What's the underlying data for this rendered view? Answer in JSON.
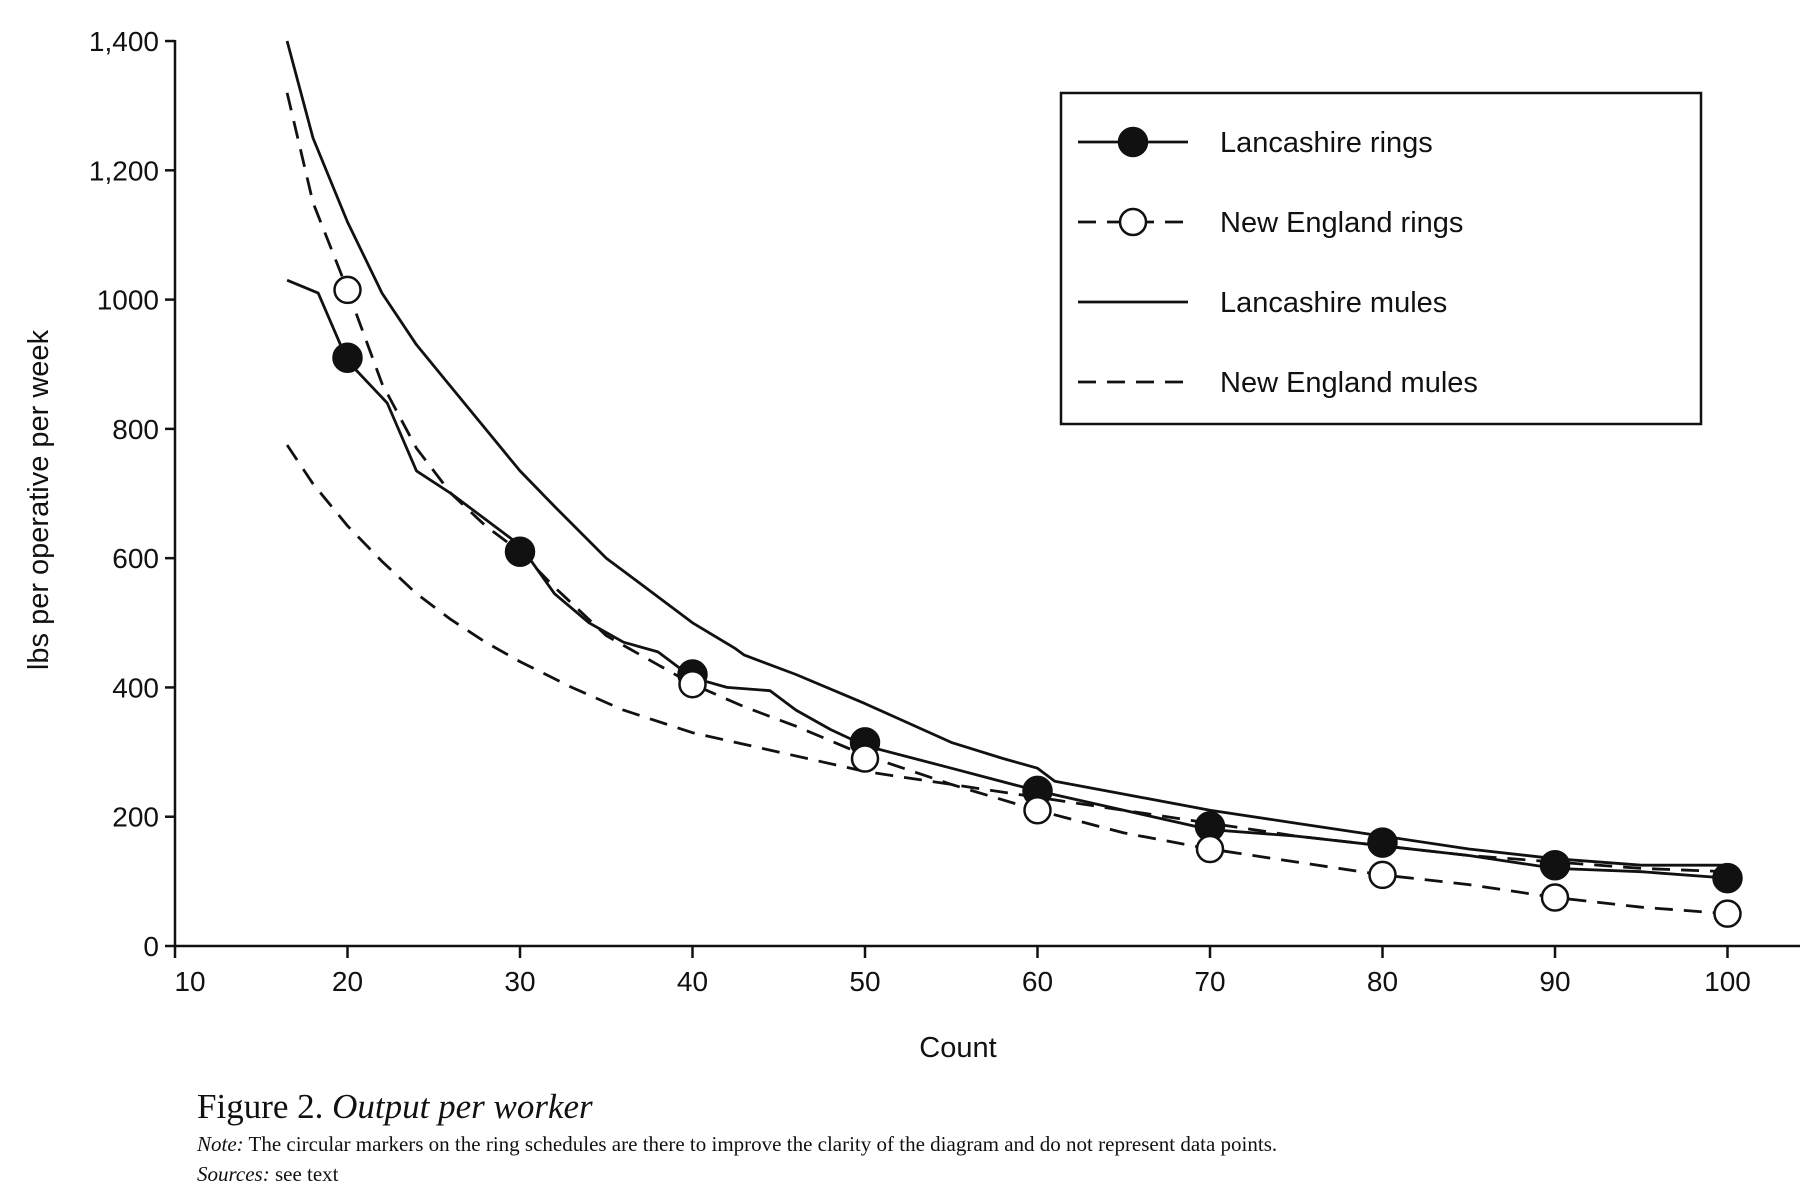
{
  "chart_data": {
    "type": "line",
    "xlabel": "Count",
    "ylabel": "lbs per operative per week",
    "xlim": [
      10,
      105
    ],
    "ylim": [
      0,
      1400
    ],
    "x_ticks": [
      10,
      20,
      30,
      40,
      50,
      60,
      70,
      80,
      90,
      100
    ],
    "y_ticks": [
      {
        "value": 0,
        "label": "0"
      },
      {
        "value": 200,
        "label": "200"
      },
      {
        "value": 400,
        "label": "400"
      },
      {
        "value": 600,
        "label": "600"
      },
      {
        "value": 800,
        "label": "800"
      },
      {
        "value": 1000,
        "label": "1000"
      },
      {
        "value": 1200,
        "label": "1,200"
      },
      {
        "value": 1400,
        "label": "1,400"
      }
    ],
    "grid": false,
    "legend_position": "top-right",
    "series": [
      {
        "name": "Lancashire rings",
        "line": "solid",
        "marker": "filled-circle",
        "x": [
          16.5,
          18.3,
          20,
          22.3,
          24,
          26,
          28,
          30,
          32,
          34,
          36,
          38,
          40,
          42,
          44.5,
          46,
          48,
          50,
          55,
          60,
          65,
          70,
          75,
          80,
          85,
          90,
          95,
          100
        ],
        "y": [
          1030,
          1010,
          905,
          840,
          735,
          700,
          660,
          620,
          545,
          500,
          470,
          455,
          415,
          400,
          395,
          365,
          335,
          310,
          275,
          240,
          210,
          180,
          170,
          155,
          140,
          120,
          115,
          105
        ],
        "marker_x": [
          20,
          30,
          40,
          50,
          60,
          70,
          80,
          90,
          100
        ],
        "marker_y": [
          910,
          610,
          420,
          315,
          240,
          185,
          160,
          125,
          105
        ]
      },
      {
        "name": "New England rings",
        "line": "dashed",
        "marker": "open-circle",
        "x": [
          16.5,
          18,
          20,
          22,
          24,
          26,
          28,
          30,
          32,
          35,
          38,
          40,
          43,
          46,
          50,
          55,
          60,
          65,
          70,
          75,
          80,
          85,
          90,
          95,
          100
        ],
        "y": [
          1320,
          1150,
          1015,
          870,
          770,
          700,
          650,
          610,
          555,
          480,
          435,
          405,
          370,
          340,
          295,
          250,
          210,
          175,
          150,
          130,
          110,
          95,
          75,
          60,
          50
        ],
        "marker_x": [
          20,
          40,
          50,
          60,
          70,
          80,
          90,
          100
        ],
        "marker_y": [
          1015,
          405,
          290,
          210,
          150,
          110,
          75,
          50
        ]
      },
      {
        "name": "Lancashire mules",
        "line": "solid",
        "marker": "none",
        "x": [
          16.5,
          18,
          20,
          22,
          24,
          26,
          28,
          30,
          32,
          35,
          38,
          40,
          42.5,
          43,
          46,
          50,
          55,
          58,
          60,
          61,
          65,
          70,
          75,
          80,
          85,
          90,
          95,
          100
        ],
        "y": [
          1400,
          1250,
          1120,
          1010,
          930,
          865,
          800,
          735,
          680,
          600,
          540,
          500,
          460,
          450,
          420,
          375,
          315,
          290,
          275,
          255,
          235,
          210,
          190,
          170,
          150,
          135,
          125,
          125
        ]
      },
      {
        "name": "New England mules",
        "line": "dashed",
        "marker": "none",
        "x": [
          16.5,
          18,
          20,
          22,
          24,
          26,
          28,
          30,
          33,
          36,
          40,
          45,
          50,
          55,
          60,
          65,
          70,
          75,
          80,
          85,
          90,
          95,
          100
        ],
        "y": [
          775,
          715,
          650,
          595,
          545,
          505,
          470,
          440,
          400,
          365,
          330,
          300,
          270,
          250,
          230,
          210,
          190,
          170,
          155,
          140,
          130,
          120,
          115
        ]
      }
    ]
  },
  "caption": {
    "figure_label": "Figure 2.",
    "figure_title": "Output per worker",
    "note_label": "Note:",
    "note_text": "The circular markers on the ring schedules are there to improve the clarity of the diagram and do not represent data points.",
    "sources_label": "Sources:",
    "sources_text": "see text"
  }
}
